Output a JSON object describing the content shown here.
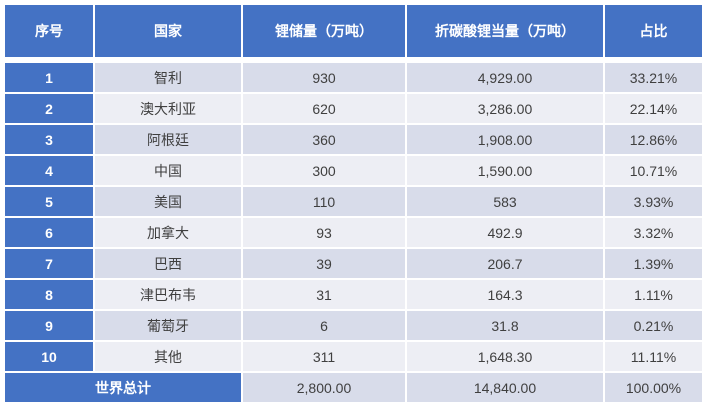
{
  "colors": {
    "header_blue": "#4472c4",
    "band_dark": "#d8dcea",
    "band_light": "#edeef4",
    "header_text": "#ffffff",
    "body_text": "#3f3f3f"
  },
  "table": {
    "headers": [
      "序号",
      "国家",
      "锂储量（万吨）",
      "折碳酸锂当量（万吨）",
      "占比"
    ],
    "rows": [
      {
        "index": "1",
        "country": "智利",
        "reserves": "930",
        "lce": "4,929.00",
        "share": "33.21%"
      },
      {
        "index": "2",
        "country": "澳大利亚",
        "reserves": "620",
        "lce": "3,286.00",
        "share": "22.14%"
      },
      {
        "index": "3",
        "country": "阿根廷",
        "reserves": "360",
        "lce": "1,908.00",
        "share": "12.86%"
      },
      {
        "index": "4",
        "country": "中国",
        "reserves": "300",
        "lce": "1,590.00",
        "share": "10.71%"
      },
      {
        "index": "5",
        "country": "美国",
        "reserves": "110",
        "lce": "583",
        "share": "3.93%"
      },
      {
        "index": "6",
        "country": "加拿大",
        "reserves": "93",
        "lce": "492.9",
        "share": "3.32%"
      },
      {
        "index": "7",
        "country": "巴西",
        "reserves": "39",
        "lce": "206.7",
        "share": "1.39%"
      },
      {
        "index": "8",
        "country": "津巴布韦",
        "reserves": "31",
        "lce": "164.3",
        "share": "1.11%"
      },
      {
        "index": "9",
        "country": "葡萄牙",
        "reserves": "6",
        "lce": "31.8",
        "share": "0.21%"
      },
      {
        "index": "10",
        "country": "其他",
        "reserves": "311",
        "lce": "1,648.30",
        "share": "11.11%"
      }
    ],
    "total": {
      "label": "世界总计",
      "reserves": "2,800.00",
      "lce": "14,840.00",
      "share": "100.00%"
    }
  },
  "chart_data": {
    "type": "table",
    "title": "",
    "columns": [
      "序号",
      "国家",
      "锂储量（万吨）",
      "折碳酸锂当量（万吨）",
      "占比"
    ],
    "rows": [
      [
        1,
        "智利",
        930,
        4929.0,
        "33.21%"
      ],
      [
        2,
        "澳大利亚",
        620,
        3286.0,
        "22.14%"
      ],
      [
        3,
        "阿根廷",
        360,
        1908.0,
        "12.86%"
      ],
      [
        4,
        "中国",
        300,
        1590.0,
        "10.71%"
      ],
      [
        5,
        "美国",
        110,
        583,
        "3.93%"
      ],
      [
        6,
        "加拿大",
        93,
        492.9,
        "3.32%"
      ],
      [
        7,
        "巴西",
        39,
        206.7,
        "1.39%"
      ],
      [
        8,
        "津巴布韦",
        31,
        164.3,
        "1.11%"
      ],
      [
        9,
        "葡萄牙",
        6,
        31.8,
        "0.21%"
      ],
      [
        10,
        "其他",
        311,
        1648.3,
        "11.11%"
      ]
    ],
    "total_row": [
      "世界总计",
      2800.0,
      14840.0,
      "100.00%"
    ],
    "layout": "banded rows, blue header and index column, total row spans first two columns"
  }
}
